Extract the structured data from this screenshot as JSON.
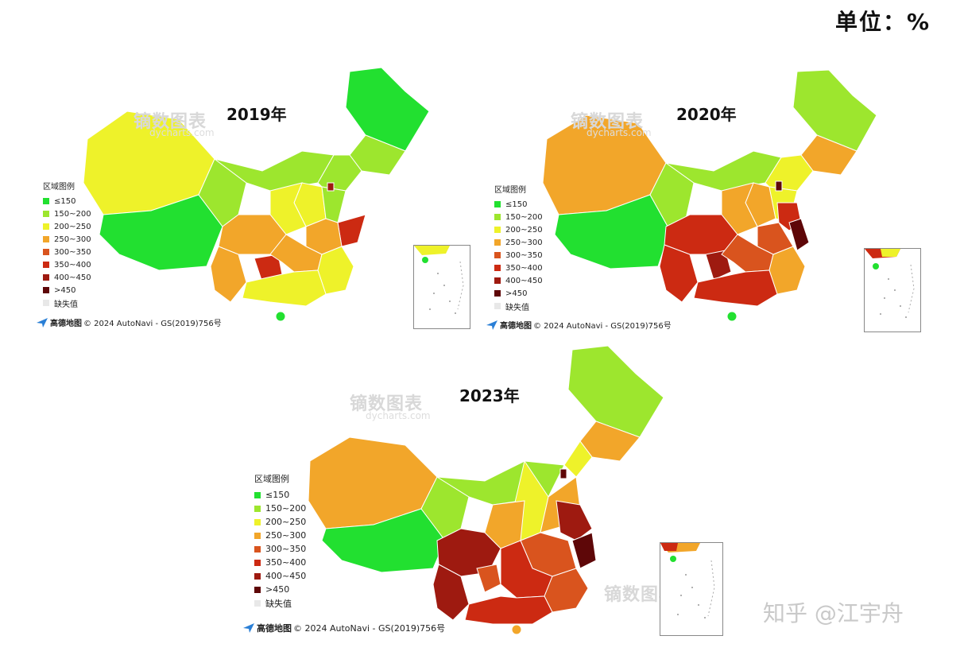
{
  "unit_label": "单位：%",
  "legend": {
    "title": "区域图例",
    "items": [
      {
        "label": "≤150",
        "color": "#22e030"
      },
      {
        "label": "150~200",
        "color": "#9de62e"
      },
      {
        "label": "200~250",
        "color": "#eef22a"
      },
      {
        "label": "250~300",
        "color": "#f2a62a"
      },
      {
        "label": "300~350",
        "color": "#d9541e"
      },
      {
        "label": "350~400",
        "color": "#cc2a12"
      },
      {
        "label": "400~450",
        "color": "#9e1a10"
      },
      {
        "label": ">450",
        "color": "#5e0708"
      },
      {
        "label": "缺失值",
        "color": "#e8e8e8"
      }
    ]
  },
  "attribution": {
    "brand": "高德地图",
    "text": "© 2024 AutoNavi - GS(2019)756号"
  },
  "watermark": {
    "main": "镝数图表",
    "sub": "dycharts.com"
  },
  "credit": "知乎 @江宇舟",
  "maps": [
    {
      "title": "2019年"
    },
    {
      "title": "2020年"
    },
    {
      "title": "2023年"
    }
  ]
}
